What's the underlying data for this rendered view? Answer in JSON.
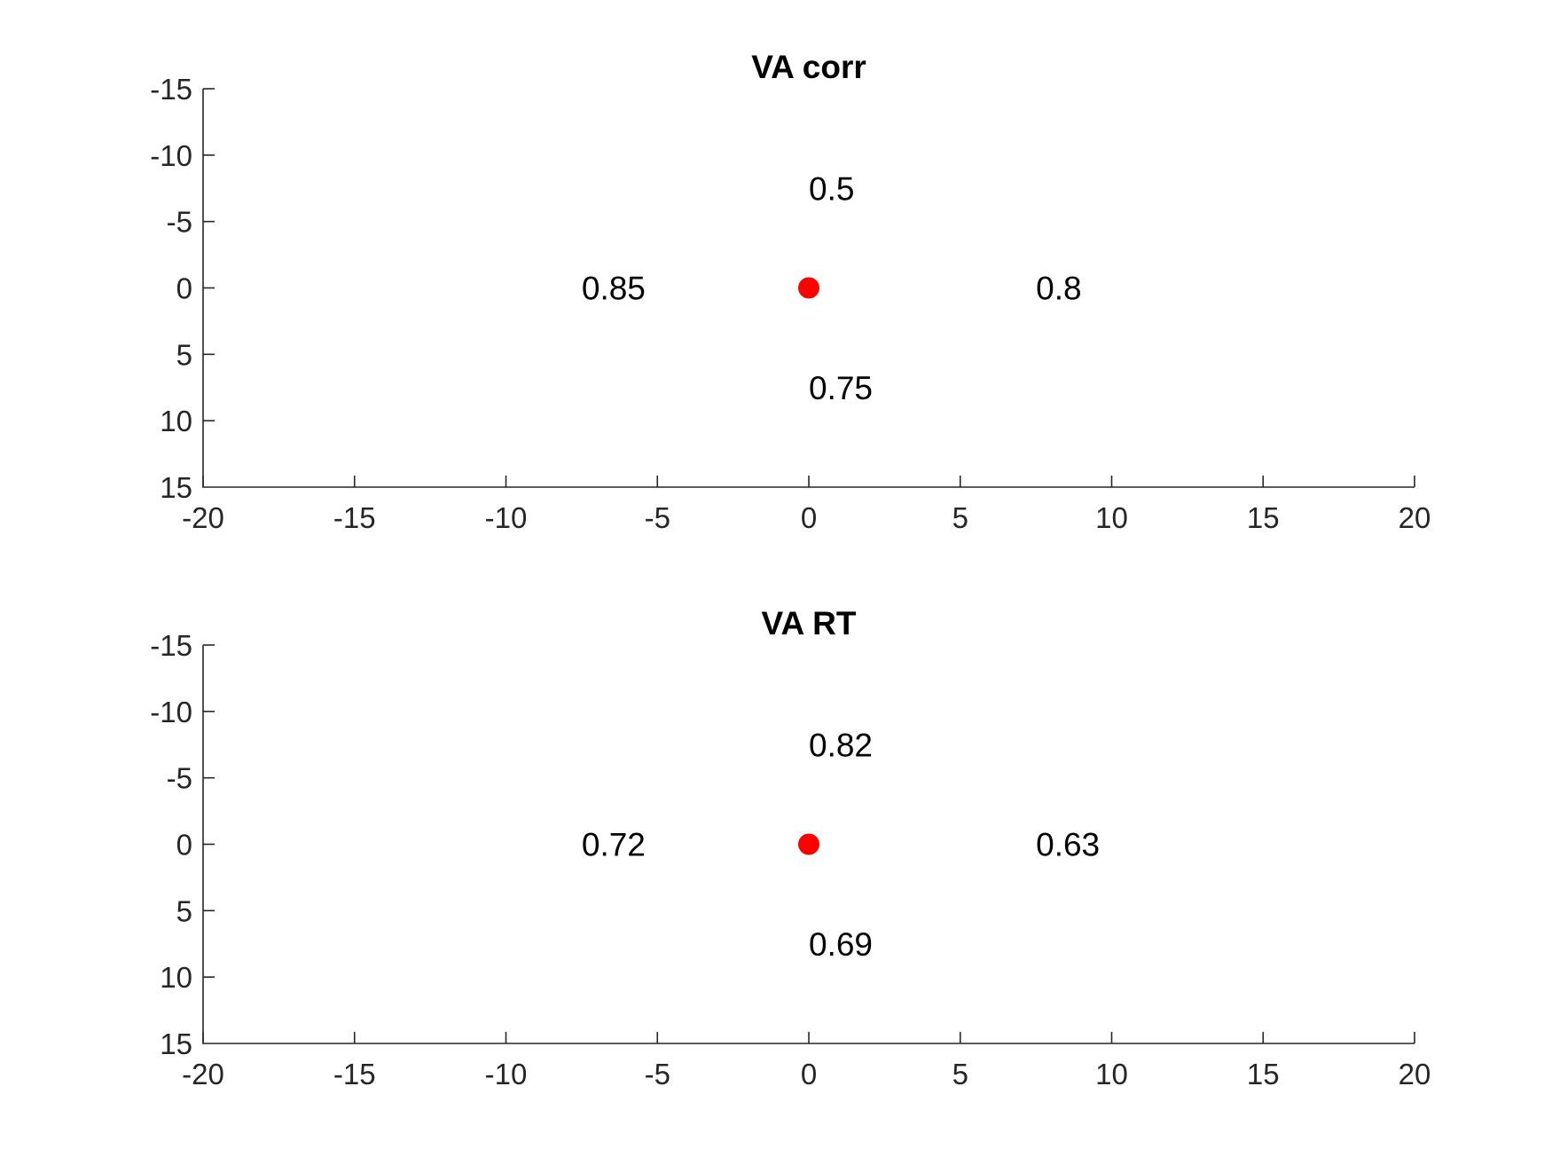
{
  "chart_data": [
    {
      "type": "scatter",
      "title": "VA corr",
      "xlabel": "",
      "ylabel": "",
      "xlim": [
        -20,
        20
      ],
      "ylim": [
        -15,
        15
      ],
      "y_reversed": true,
      "grid": false,
      "xticks": [
        -20,
        -15,
        -10,
        -5,
        0,
        5,
        10,
        15,
        20
      ],
      "yticks": [
        -15,
        -10,
        -5,
        0,
        5,
        10,
        15
      ],
      "points": [
        {
          "x": 0,
          "y": 0,
          "color": "#ff0000"
        }
      ],
      "annotations": [
        {
          "text": "0.5",
          "x": 0,
          "y": -7.5
        },
        {
          "text": "0.85",
          "x": -7.5,
          "y": 0
        },
        {
          "text": "0.8",
          "x": 7.5,
          "y": 0
        },
        {
          "text": "0.75",
          "x": 0,
          "y": 7.5
        }
      ]
    },
    {
      "type": "scatter",
      "title": "VA RT",
      "xlabel": "",
      "ylabel": "",
      "xlim": [
        -20,
        20
      ],
      "ylim": [
        -15,
        15
      ],
      "y_reversed": true,
      "grid": false,
      "xticks": [
        -20,
        -15,
        -10,
        -5,
        0,
        5,
        10,
        15,
        20
      ],
      "yticks": [
        -15,
        -10,
        -5,
        0,
        5,
        10,
        15
      ],
      "points": [
        {
          "x": 0,
          "y": 0,
          "color": "#ff0000"
        }
      ],
      "annotations": [
        {
          "text": "0.82",
          "x": 0,
          "y": -7.5
        },
        {
          "text": "0.72",
          "x": -7.5,
          "y": 0
        },
        {
          "text": "0.63",
          "x": 7.5,
          "y": 0
        },
        {
          "text": "0.69",
          "x": 0,
          "y": 7.5
        }
      ]
    }
  ]
}
